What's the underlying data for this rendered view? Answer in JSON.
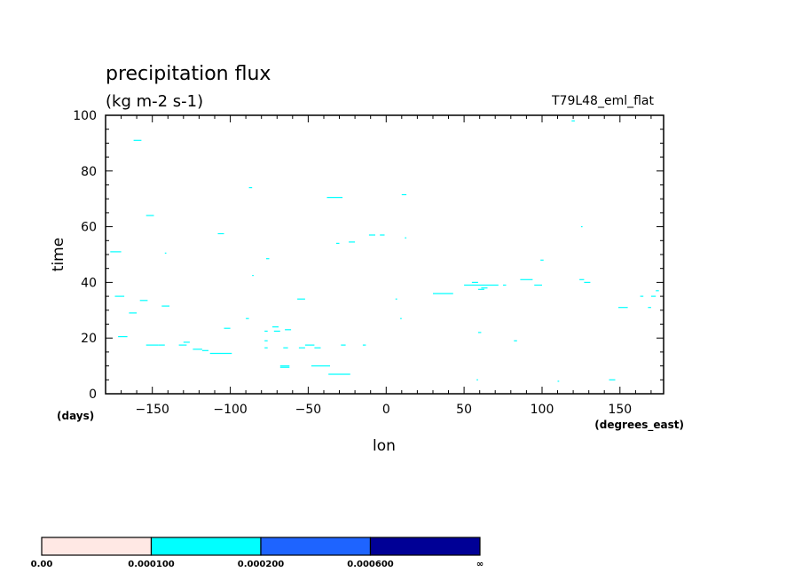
{
  "chart_data": {
    "type": "heatmap",
    "title": "precipitation flux",
    "subtitle": "(kg m-2 s-1)",
    "run_label": "T79L48_eml_flat",
    "xlabel": "lon",
    "ylabel": "time",
    "x_unit": "(degrees_east)",
    "y_unit": "(days)",
    "xlim": [
      -180,
      178
    ],
    "ylim": [
      0,
      100
    ],
    "xticks": [
      -150,
      -100,
      -50,
      0,
      50,
      100,
      150
    ],
    "xtick_labels": [
      "−150",
      "−100",
      "−50",
      "0",
      "50",
      "100",
      "150"
    ],
    "yticks": [
      0,
      20,
      40,
      60,
      80,
      100
    ],
    "ytick_labels": [
      "0",
      "20",
      "40",
      "60",
      "80",
      "100"
    ],
    "grid": false,
    "colorbar": {
      "levels": [
        "0.00",
        "0.000100",
        "0.000200",
        "0.000600",
        "∞"
      ],
      "colors": [
        "#ffe8e4",
        "#00ffff",
        "#1e64ff",
        "#000096"
      ]
    },
    "contour_segments": [
      {
        "lon": [
          -177,
          -170
        ],
        "time": 51
      },
      {
        "lon": [
          -174,
          -168
        ],
        "time": 35
      },
      {
        "lon": [
          -172,
          -166
        ],
        "time": 20.5
      },
      {
        "lon": [
          -165,
          -160
        ],
        "time": 29
      },
      {
        "lon": [
          -162,
          -157
        ],
        "time": 91
      },
      {
        "lon": [
          -158,
          -153
        ],
        "time": 33.5
      },
      {
        "lon": [
          -154,
          -149
        ],
        "time": 64
      },
      {
        "lon": [
          -154,
          -146
        ],
        "time": 17.5
      },
      {
        "lon": [
          -146,
          -142
        ],
        "time": 17.5
      },
      {
        "lon": [
          -144,
          -139
        ],
        "time": 31.5
      },
      {
        "lon": [
          -142,
          -141
        ],
        "time": 50.5
      },
      {
        "lon": [
          -133,
          -128
        ],
        "time": 17.5
      },
      {
        "lon": [
          -130,
          -126
        ],
        "time": 18.5
      },
      {
        "lon": [
          -124,
          -118
        ],
        "time": 16
      },
      {
        "lon": [
          -118,
          -114
        ],
        "time": 15.5
      },
      {
        "lon": [
          -113,
          -99
        ],
        "time": 14.5
      },
      {
        "lon": [
          -108,
          -104
        ],
        "time": 57.5
      },
      {
        "lon": [
          -104,
          -100
        ],
        "time": 23.5
      },
      {
        "lon": [
          -90,
          -88
        ],
        "time": 27
      },
      {
        "lon": [
          -88,
          -86
        ],
        "time": 74
      },
      {
        "lon": [
          -86,
          -85
        ],
        "time": 42.5
      },
      {
        "lon": [
          -78,
          -76
        ],
        "time": 16.5
      },
      {
        "lon": [
          -78,
          -76
        ],
        "time": 19
      },
      {
        "lon": [
          -78,
          -76
        ],
        "time": 22.5
      },
      {
        "lon": [
          -77,
          -75
        ],
        "time": 48.5
      },
      {
        "lon": [
          -73,
          -69
        ],
        "time": 24
      },
      {
        "lon": [
          -72,
          -68
        ],
        "time": 22.5
      },
      {
        "lon": [
          -68,
          -62
        ],
        "time": 10
      },
      {
        "lon": [
          -68,
          -62
        ],
        "time": 9.5
      },
      {
        "lon": [
          -66,
          -63
        ],
        "time": 16.5
      },
      {
        "lon": [
          -65,
          -61
        ],
        "time": 23
      },
      {
        "lon": [
          -57,
          -52
        ],
        "time": 34
      },
      {
        "lon": [
          -56,
          -52
        ],
        "time": 16.5
      },
      {
        "lon": [
          -52,
          -46
        ],
        "time": 17.5
      },
      {
        "lon": [
          -48,
          -42
        ],
        "time": 10
      },
      {
        "lon": [
          -46,
          -42
        ],
        "time": 16.5
      },
      {
        "lon": [
          -42,
          -36
        ],
        "time": 10
      },
      {
        "lon": [
          -38,
          -28
        ],
        "time": 70.5
      },
      {
        "lon": [
          -37,
          -23
        ],
        "time": 7
      },
      {
        "lon": [
          -32,
          -30
        ],
        "time": 54
      },
      {
        "lon": [
          -29,
          -26
        ],
        "time": 17.5
      },
      {
        "lon": [
          -24,
          -20
        ],
        "time": 54.5
      },
      {
        "lon": [
          -15,
          -13
        ],
        "time": 17.5
      },
      {
        "lon": [
          -11,
          -7
        ],
        "time": 57
      },
      {
        "lon": [
          -4,
          -1
        ],
        "time": 57
      },
      {
        "lon": [
          6,
          7
        ],
        "time": 34
      },
      {
        "lon": [
          9,
          10
        ],
        "time": 27
      },
      {
        "lon": [
          10,
          13
        ],
        "time": 71.5
      },
      {
        "lon": [
          12,
          13
        ],
        "time": 56
      },
      {
        "lon": [
          30,
          43
        ],
        "time": 36
      },
      {
        "lon": [
          50,
          72
        ],
        "time": 39
      },
      {
        "lon": [
          55,
          59
        ],
        "time": 40
      },
      {
        "lon": [
          59,
          63
        ],
        "time": 37.5
      },
      {
        "lon": [
          61,
          65
        ],
        "time": 38
      },
      {
        "lon": [
          59,
          61
        ],
        "time": 22
      },
      {
        "lon": [
          58,
          59
        ],
        "time": 5
      },
      {
        "lon": [
          75,
          77
        ],
        "time": 39
      },
      {
        "lon": [
          82,
          84
        ],
        "time": 19
      },
      {
        "lon": [
          86,
          94
        ],
        "time": 41
      },
      {
        "lon": [
          95,
          100
        ],
        "time": 39
      },
      {
        "lon": [
          99,
          101
        ],
        "time": 48
      },
      {
        "lon": [
          110,
          111
        ],
        "time": 4.5
      },
      {
        "lon": [
          119,
          121
        ],
        "time": 98
      },
      {
        "lon": [
          124,
          127
        ],
        "time": 41
      },
      {
        "lon": [
          125,
          126
        ],
        "time": 60
      },
      {
        "lon": [
          127,
          131
        ],
        "time": 40
      },
      {
        "lon": [
          143,
          147
        ],
        "time": 5
      },
      {
        "lon": [
          149,
          155
        ],
        "time": 31
      },
      {
        "lon": [
          163,
          165
        ],
        "time": 35
      },
      {
        "lon": [
          168,
          170
        ],
        "time": 31
      },
      {
        "lon": [
          170,
          173
        ],
        "time": 35
      },
      {
        "lon": [
          173,
          175
        ],
        "time": 37
      }
    ]
  }
}
